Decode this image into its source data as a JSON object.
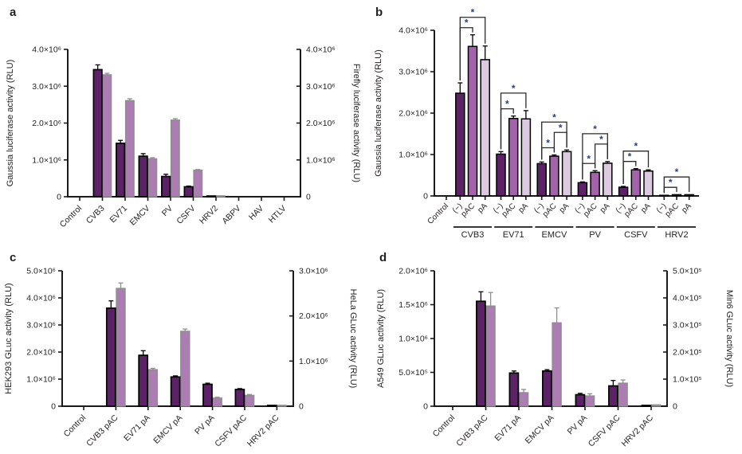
{
  "style": {
    "bar_dark": "#5c2266",
    "bar_medium": "#a263aa",
    "bar_light": "#dccae0",
    "bar_mauve": "#ab7db2",
    "outline_dark": "#000000",
    "outline_mauve": "#8e8e8e",
    "error_dark": "#000000",
    "error_mauve": "#8e8e8e",
    "axis_color": "#1a1a1a",
    "text_color": "#231f20",
    "asterisk_color": "#2c3e7a"
  },
  "chart_data": [
    {
      "panel_label": "a",
      "type": "bar",
      "left_axis": {
        "label": "Gaussia luciferase activity (RLU)",
        "max": 4000000,
        "tick_values": [
          0,
          1000000,
          2000000,
          3000000,
          4000000
        ],
        "tick_labels": [
          "0",
          "1.0×10⁶",
          "2.0×10⁶",
          "3.0×10⁶",
          "4.0×10⁶"
        ]
      },
      "right_axis": {
        "label": "Firefly luciferase activity (RLU)",
        "max": 4000000,
        "tick_values": [
          0,
          1000000,
          2000000,
          3000000,
          4000000
        ],
        "tick_labels": [
          "0",
          "1.0×10⁶",
          "2.0×10⁶",
          "3.0×10⁶",
          "4.0×10⁶"
        ]
      },
      "categories": [
        "Control",
        "CVB3",
        "EV71",
        "EMCV",
        "PV",
        "CSFV",
        "HRV2",
        "ABPV",
        "HAV",
        "HTLV"
      ],
      "series": [
        {
          "name": "Gaussia luciferase",
          "axis": "left",
          "color": "bar_dark",
          "values": [
            0,
            3450000,
            1450000,
            1100000,
            550000,
            270000,
            20000,
            5000,
            5000,
            5000
          ],
          "errors": [
            0,
            130000,
            80000,
            70000,
            60000,
            20000,
            5000,
            0,
            0,
            0
          ]
        },
        {
          "name": "Firefly luciferase",
          "axis": "right",
          "color": "bar_mauve",
          "values": [
            0,
            3310000,
            2610000,
            1030000,
            2080000,
            720000,
            25000,
            5000,
            5000,
            5000
          ],
          "errors": [
            0,
            40000,
            50000,
            30000,
            40000,
            20000,
            0,
            0,
            0,
            0
          ]
        }
      ]
    },
    {
      "panel_label": "b",
      "type": "bar",
      "y_axis": {
        "label": "Gaussia luciferase activity (RLU)",
        "max": 4000000,
        "tick_values": [
          0,
          1000000,
          2000000,
          3000000,
          4000000
        ],
        "tick_labels": [
          "0",
          "1.0×10⁶",
          "2.0×10⁶",
          "3.0×10⁶",
          "4.0×10⁶"
        ]
      },
      "control": {
        "label": "Control",
        "value": 5000,
        "error": 0
      },
      "bar_labels": [
        "(−)",
        "pAC",
        "pA"
      ],
      "bar_colors": [
        "bar_dark",
        "bar_medium",
        "bar_light"
      ],
      "groups": [
        {
          "label": "CVB3",
          "values": [
            2480000,
            3610000,
            3290000
          ],
          "errors": [
            250000,
            280000,
            330000
          ]
        },
        {
          "label": "EV71",
          "values": [
            1010000,
            1870000,
            1860000
          ],
          "errors": [
            60000,
            60000,
            200000
          ]
        },
        {
          "label": "EMCV",
          "values": [
            780000,
            960000,
            1070000
          ],
          "errors": [
            40000,
            30000,
            40000
          ]
        },
        {
          "label": "PV",
          "values": [
            320000,
            570000,
            790000
          ],
          "errors": [
            20000,
            40000,
            40000
          ]
        },
        {
          "label": "CSFV",
          "values": [
            210000,
            630000,
            600000
          ],
          "errors": [
            20000,
            30000,
            30000
          ]
        },
        {
          "label": "HRV2",
          "values": [
            15000,
            30000,
            30000
          ],
          "errors": [
            0,
            5000,
            5000
          ]
        }
      ],
      "significance": [
        {
          "group": 0,
          "from": 0,
          "to": 1,
          "level": 0,
          "label": "*"
        },
        {
          "group": 0,
          "from": 0,
          "to": 2,
          "level": 1,
          "label": "*"
        },
        {
          "group": 1,
          "from": 0,
          "to": 1,
          "level": 0,
          "label": "*"
        },
        {
          "group": 1,
          "from": 0,
          "to": 2,
          "level": 1,
          "label": "*"
        },
        {
          "group": 2,
          "from": 0,
          "to": 1,
          "level": 0,
          "label": "*"
        },
        {
          "group": 2,
          "from": 1,
          "to": 2,
          "level": 1,
          "label": "*"
        },
        {
          "group": 2,
          "from": 0,
          "to": 2,
          "level": 2,
          "label": "*"
        },
        {
          "group": 3,
          "from": 0,
          "to": 1,
          "level": 0,
          "label": "*"
        },
        {
          "group": 3,
          "from": 1,
          "to": 2,
          "level": 1,
          "label": "*"
        },
        {
          "group": 3,
          "from": 0,
          "to": 2,
          "level": 2,
          "label": "*"
        },
        {
          "group": 4,
          "from": 0,
          "to": 1,
          "level": 0,
          "label": "*"
        },
        {
          "group": 4,
          "from": 0,
          "to": 2,
          "level": 1,
          "label": "*"
        },
        {
          "group": 5,
          "from": 0,
          "to": 1,
          "level": 0,
          "label": "*"
        },
        {
          "group": 5,
          "from": 0,
          "to": 2,
          "level": 1,
          "label": "*"
        }
      ]
    },
    {
      "panel_label": "c",
      "type": "bar",
      "left_axis": {
        "label": "HEK293 GLuc activity (RLU)",
        "max": 5000000,
        "tick_values": [
          0,
          1000000,
          2000000,
          3000000,
          4000000,
          5000000
        ],
        "tick_labels": [
          "0",
          "1.0×10⁶",
          "2.0×10⁶",
          "3.0×10⁶",
          "4.0×10⁶",
          "5.0×10⁶"
        ]
      },
      "right_axis": {
        "label": "HeLa GLuc activity (RLU)",
        "max": 3000000,
        "tick_values": [
          0,
          1000000,
          2000000,
          3000000
        ],
        "tick_labels": [
          "0",
          "1.0×10⁶",
          "2.0×10⁶",
          "3.0×10⁶"
        ]
      },
      "categories": [
        "Control",
        "CVB3 pAC",
        "EV71 pA",
        "EMCV pA",
        "PV pA",
        "CSFV pAC",
        "HRV2 pAC"
      ],
      "series": [
        {
          "name": "HEK293 GLuc",
          "axis": "left",
          "color": "bar_dark",
          "values": [
            0,
            3620000,
            1880000,
            1080000,
            810000,
            620000,
            30000
          ],
          "errors": [
            0,
            270000,
            170000,
            40000,
            40000,
            30000,
            0
          ]
        },
        {
          "name": "HeLa GLuc",
          "axis": "right",
          "color": "bar_mauve",
          "values": [
            0,
            2610000,
            810000,
            1660000,
            180000,
            240000,
            20000
          ],
          "errors": [
            0,
            120000,
            30000,
            50000,
            20000,
            20000,
            0
          ]
        }
      ]
    },
    {
      "panel_label": "d",
      "type": "bar",
      "left_axis": {
        "label": "A549 GLuc activity (RLU)",
        "max": 2000000,
        "tick_values": [
          0,
          500000,
          1000000,
          1500000,
          2000000
        ],
        "tick_labels": [
          "0",
          "5.0×10⁵",
          "1.0×10⁶",
          "1.5×10⁶",
          "2.0×10⁶"
        ]
      },
      "right_axis": {
        "label": "Min6 GLuc activity (RLU)",
        "max": 500000,
        "tick_values": [
          0,
          100000,
          200000,
          300000,
          400000,
          500000
        ],
        "tick_labels": [
          "0",
          "1.0×10⁵",
          "2.0×10⁵",
          "3.0×10⁵",
          "4.0×10⁵",
          "5.0×10⁵"
        ]
      },
      "categories": [
        "Control",
        "CVB3 pAC",
        "EV71 pA",
        "EMCV pA",
        "PV pA",
        "CSFV pAC",
        "HRV2 pAC"
      ],
      "series": [
        {
          "name": "A549 GLuc",
          "axis": "left",
          "color": "bar_dark",
          "values": [
            0,
            1550000,
            490000,
            520000,
            170000,
            300000,
            12000
          ],
          "errors": [
            0,
            140000,
            30000,
            20000,
            20000,
            80000,
            0
          ]
        },
        {
          "name": "Min6 GLuc",
          "axis": "right",
          "color": "bar_mauve",
          "values": [
            0,
            370000,
            50000,
            308000,
            38000,
            85000,
            5000
          ],
          "errors": [
            0,
            50000,
            12000,
            55000,
            8000,
            12000,
            0
          ]
        }
      ]
    }
  ]
}
